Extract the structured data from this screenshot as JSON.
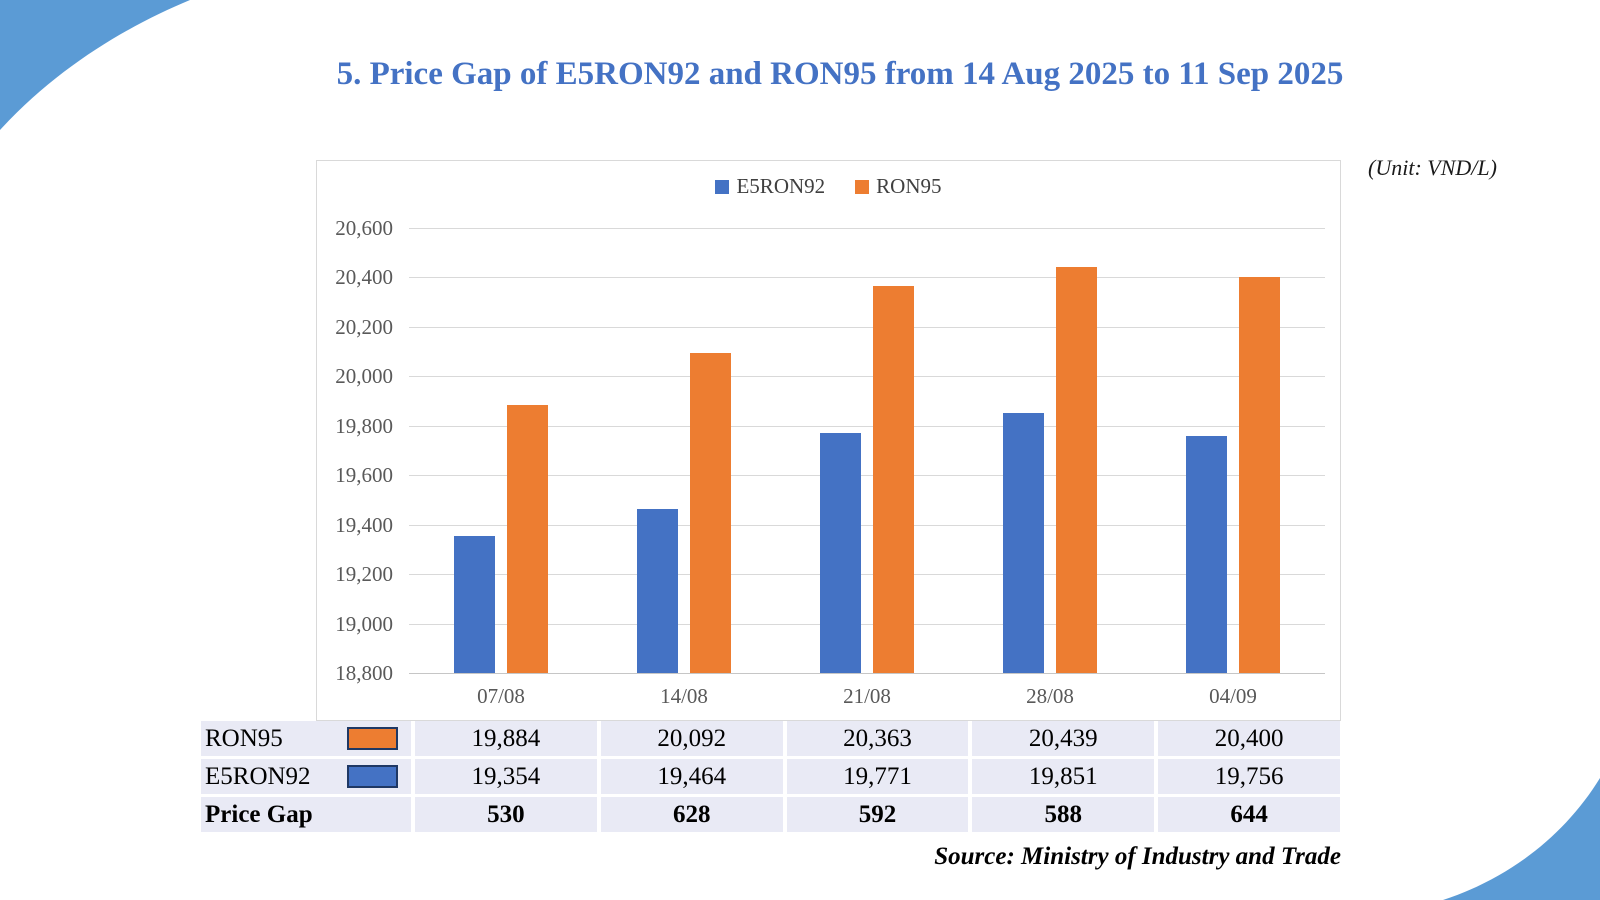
{
  "title": "5. Price Gap of E5RON92 and RON95 from 14 Aug 2025 to 11 Sep 2025",
  "unit_note": "(Unit: VND/L)",
  "source_note": "Source: Ministry of Industry and Trade",
  "colors": {
    "title_blue": "#4472C4",
    "corner_decoration_blue": "#5B9BD5",
    "bar_blue": "#4472C4",
    "bar_orange": "#ED7D31",
    "axis_text": "#595959",
    "gridline": "#D9D9D9",
    "table_cell_bg": "#E9EAF5",
    "swatch_border": "#1F3864"
  },
  "chart_data": {
    "type": "bar",
    "title": "5. Price Gap of E5RON92 and RON95 from 14 Aug 2025 to 11 Sep 2025",
    "unit": "VND/L",
    "categories": [
      "07/08",
      "14/08",
      "21/08",
      "28/08",
      "04/09"
    ],
    "series": [
      {
        "name": "E5RON92",
        "color": "#4472C4",
        "values": [
          19354,
          19464,
          19771,
          19851,
          19756
        ]
      },
      {
        "name": "RON95",
        "color": "#ED7D31",
        "values": [
          19884,
          20092,
          20363,
          20439,
          20400
        ]
      }
    ],
    "ylim": [
      18800,
      20600
    ],
    "ytick_step": 200,
    "grid": true,
    "legend_position": "top-center",
    "xlabel": "",
    "ylabel": ""
  },
  "table": {
    "rows": [
      {
        "label": "RON95",
        "swatch": "#ED7D31",
        "bold": false,
        "values": [
          "19,884",
          "20,092",
          "20,363",
          "20,439",
          "20,400"
        ]
      },
      {
        "label": "E5RON92",
        "swatch": "#4472C4",
        "bold": false,
        "values": [
          "19,354",
          "19,464",
          "19,771",
          "19,851",
          "19,756"
        ]
      },
      {
        "label": "Price Gap",
        "swatch": null,
        "bold": true,
        "values": [
          "530",
          "628",
          "592",
          "588",
          "644"
        ]
      }
    ]
  }
}
